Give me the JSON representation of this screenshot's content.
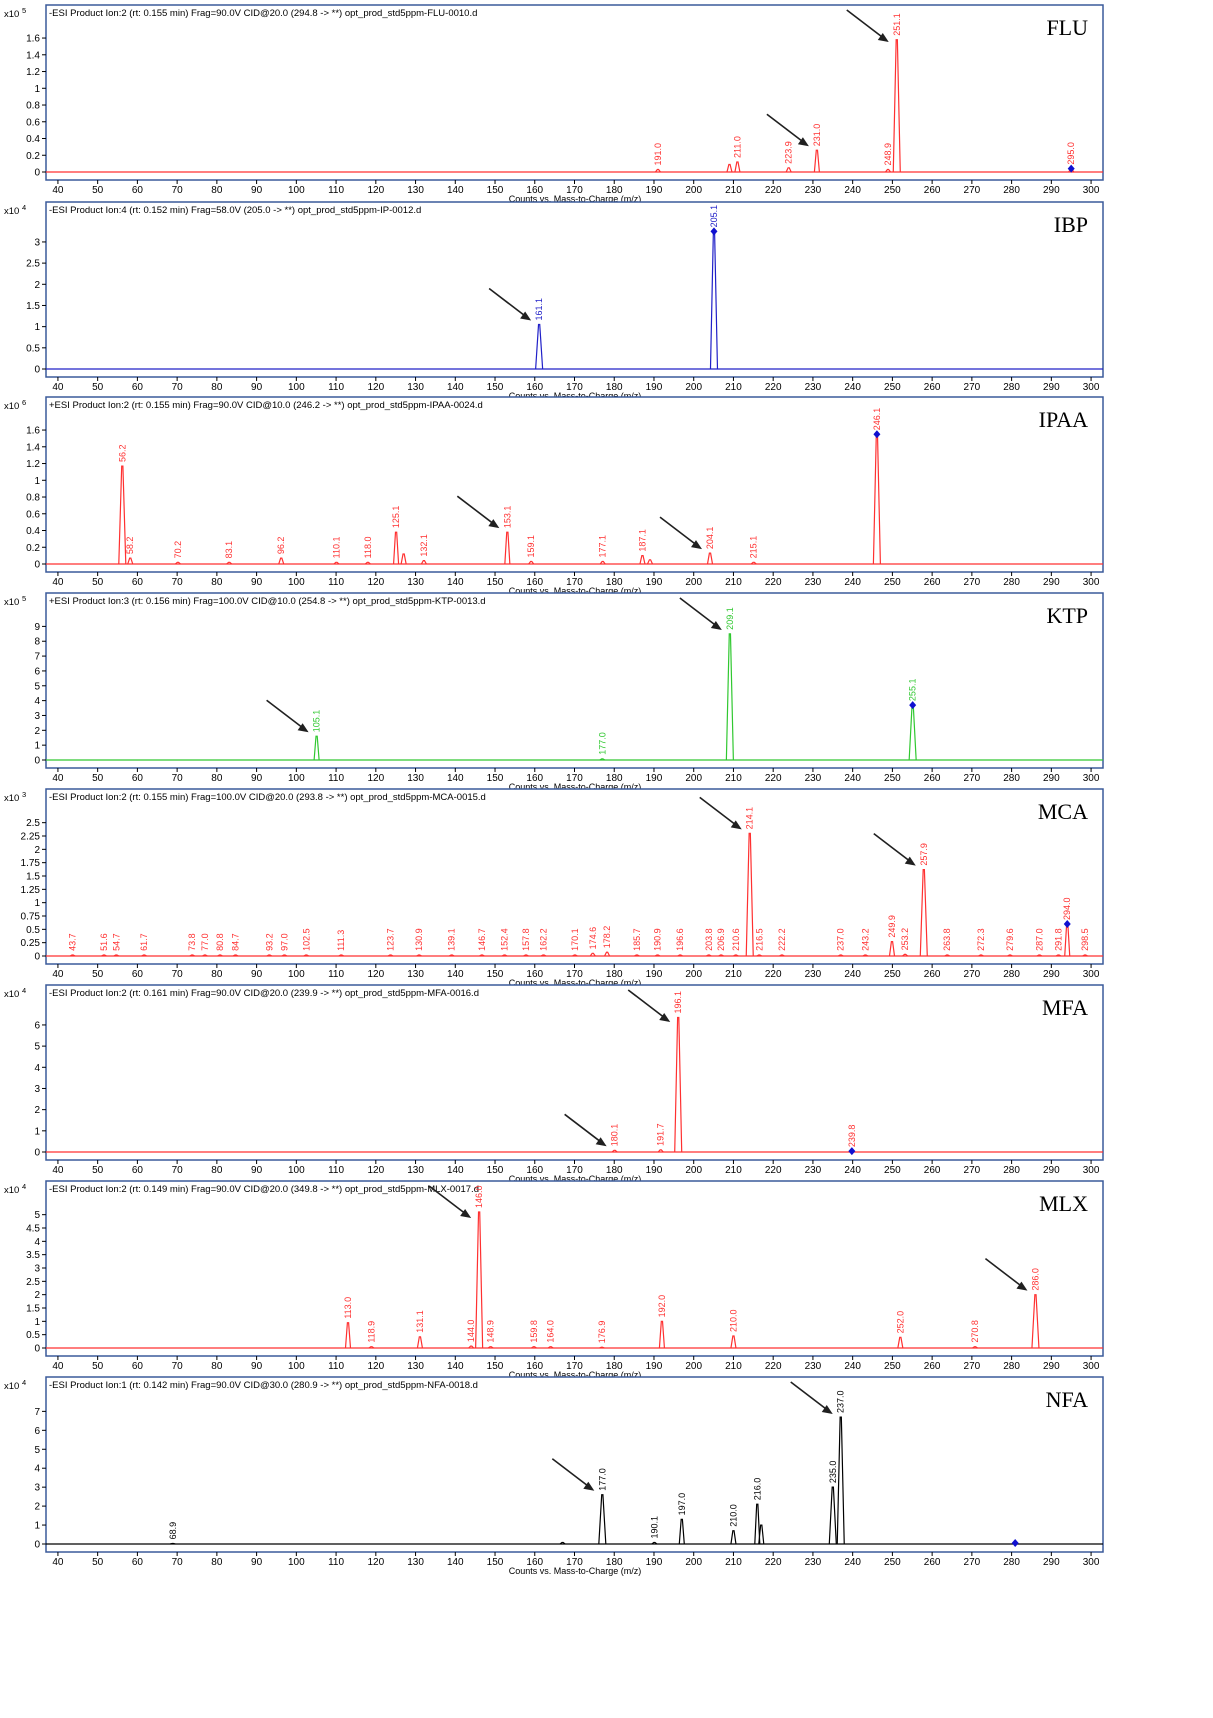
{
  "colors": {
    "red": "#ff3030",
    "blue": "#2020c8",
    "green": "#30c830",
    "black": "#000000",
    "arrow": "#202020",
    "frame": "#3a5a9a"
  },
  "x_axis": {
    "label": "Counts vs. Mass-to-Charge (m/z)",
    "ticks": [
      40,
      50,
      60,
      70,
      80,
      90,
      100,
      110,
      120,
      130,
      140,
      150,
      160,
      170,
      180,
      190,
      200,
      210,
      220,
      230,
      240,
      250,
      260,
      270,
      280,
      290,
      300
    ],
    "xlim": [
      37,
      303
    ]
  },
  "chart_data": [
    {
      "type": "line",
      "name": "FLU",
      "color": "#ff3030",
      "header": "-ESI Product Ion:2 (rt: 0.155 min) Frag=90.0V CID@20.0 (294.8 -> **) opt_prod_std5ppm-FLU-0010.d",
      "scale": "x10 5",
      "yticks": [
        "0",
        "0.2",
        "0.4",
        "0.6",
        "0.8",
        "1",
        "1.2",
        "1.4",
        "1.6"
      ],
      "ylim": [
        0,
        1.72
      ],
      "peaks": [
        {
          "x": 191.0,
          "y": 0.03,
          "label": "191.0"
        },
        {
          "x": 209.0,
          "y": 0.09,
          "label": ""
        },
        {
          "x": 211.0,
          "y": 0.12,
          "label": "211.0"
        },
        {
          "x": 223.9,
          "y": 0.05,
          "label": "223.9"
        },
        {
          "x": 231.0,
          "y": 0.26,
          "label": "231.0"
        },
        {
          "x": 248.9,
          "y": 0.03,
          "label": "248.9"
        },
        {
          "x": 251.1,
          "y": 1.58,
          "label": "251.1"
        },
        {
          "x": 295.0,
          "y": 0.04,
          "label": "295.0",
          "diamond": true
        }
      ],
      "arrows": [
        {
          "x": 251.1,
          "y": 1.58
        },
        {
          "x": 231.0,
          "y": 0.26
        }
      ]
    },
    {
      "type": "line",
      "name": "IBP",
      "color": "#2020c8",
      "header": "-ESI Product Ion:4 (rt: 0.152 min) Frag=58.0V (205.0 -> **) opt_prod_std5ppm-IP-0012.d",
      "scale": "x10 4",
      "yticks": [
        "0",
        "0.5",
        "1",
        "1.5",
        "2",
        "2.5",
        "3"
      ],
      "ylim": [
        0,
        3.4
      ],
      "peaks": [
        {
          "x": 161.1,
          "y": 1.05,
          "label": "161.1"
        },
        {
          "x": 205.1,
          "y": 3.25,
          "label": "205.1",
          "diamond": true
        }
      ],
      "arrows": [
        {
          "x": 161.1,
          "y": 1.05
        }
      ]
    },
    {
      "type": "line",
      "name": "IPAA",
      "color": "#ff3030",
      "header": "+ESI Product Ion:2 (rt: 0.155 min) Frag=90.0V CID@10.0 (246.2 -> **) opt_prod_std5ppm-IPAA-0024.d",
      "scale": "x10 6",
      "yticks": [
        "0",
        "0.2",
        "0.4",
        "0.6",
        "0.8",
        "1",
        "1.2",
        "1.4",
        "1.6"
      ],
      "ylim": [
        0,
        1.72
      ],
      "peaks": [
        {
          "x": 56.2,
          "y": 1.17,
          "label": "56.2"
        },
        {
          "x": 58.2,
          "y": 0.07,
          "label": "58.2"
        },
        {
          "x": 70.2,
          "y": 0.02,
          "label": "70.2"
        },
        {
          "x": 83.1,
          "y": 0.02,
          "label": "83.1"
        },
        {
          "x": 96.2,
          "y": 0.07,
          "label": "96.2"
        },
        {
          "x": 110.1,
          "y": 0.02,
          "label": "110.1"
        },
        {
          "x": 118.0,
          "y": 0.02,
          "label": "118.0"
        },
        {
          "x": 125.1,
          "y": 0.38,
          "label": "125.1"
        },
        {
          "x": 127.0,
          "y": 0.12,
          "label": ""
        },
        {
          "x": 132.1,
          "y": 0.04,
          "label": "132.1"
        },
        {
          "x": 153.1,
          "y": 0.38,
          "label": "153.1"
        },
        {
          "x": 159.1,
          "y": 0.03,
          "label": "159.1"
        },
        {
          "x": 177.1,
          "y": 0.03,
          "label": "177.1"
        },
        {
          "x": 187.1,
          "y": 0.1,
          "label": "187.1"
        },
        {
          "x": 189.0,
          "y": 0.05,
          "label": ""
        },
        {
          "x": 204.1,
          "y": 0.13,
          "label": "204.1"
        },
        {
          "x": 215.1,
          "y": 0.02,
          "label": "215.1"
        },
        {
          "x": 246.1,
          "y": 1.55,
          "label": "246.1",
          "diamond": true
        }
      ],
      "arrows": [
        {
          "x": 153.1,
          "y": 0.38
        },
        {
          "x": 204.1,
          "y": 0.13
        }
      ]
    },
    {
      "type": "line",
      "name": "KTP",
      "color": "#30c830",
      "header": "+ESI Product Ion:3 (rt: 0.156 min) Frag=100.0V CID@10.0 (254.8 -> **) opt_prod_std5ppm-KTP-0013.d",
      "scale": "x10 5",
      "yticks": [
        "0",
        "1",
        "2",
        "3",
        "4",
        "5",
        "6",
        "7",
        "8",
        "9"
      ],
      "ylim": [
        0,
        9.7
      ],
      "peaks": [
        {
          "x": 105.1,
          "y": 1.6,
          "label": "105.1"
        },
        {
          "x": 177.0,
          "y": 0.08,
          "label": "177.0"
        },
        {
          "x": 209.1,
          "y": 8.5,
          "label": "209.1"
        },
        {
          "x": 255.1,
          "y": 3.7,
          "label": "255.1",
          "diamond": true
        }
      ],
      "arrows": [
        {
          "x": 209.1,
          "y": 8.5
        },
        {
          "x": 105.1,
          "y": 1.6
        }
      ]
    },
    {
      "type": "line",
      "name": "MCA",
      "color": "#ff3030",
      "header": "-ESI Product Ion:2 (rt: 0.155 min) Frag=100.0V CID@20.0 (293.8 -> **) opt_prod_std5ppm-MCA-0015.d",
      "scale": "x10 3",
      "yticks": [
        "0",
        "0.25",
        "0.5",
        "0.75",
        "1",
        "1.25",
        "1.5",
        "1.75",
        "2",
        "2.25",
        "2.5"
      ],
      "ylim": [
        0,
        2.7
      ],
      "peaks": [
        {
          "x": 43.7,
          "y": 0.02,
          "label": "43.7"
        },
        {
          "x": 51.6,
          "y": 0.02,
          "label": "51.6"
        },
        {
          "x": 54.7,
          "y": 0.02,
          "label": "54.7"
        },
        {
          "x": 61.7,
          "y": 0.02,
          "label": "61.7"
        },
        {
          "x": 73.8,
          "y": 0.02,
          "label": "73.8"
        },
        {
          "x": 77.0,
          "y": 0.02,
          "label": "77.0"
        },
        {
          "x": 80.8,
          "y": 0.02,
          "label": "80.8"
        },
        {
          "x": 84.7,
          "y": 0.02,
          "label": "84.7"
        },
        {
          "x": 93.2,
          "y": 0.02,
          "label": "93.2"
        },
        {
          "x": 97.0,
          "y": 0.02,
          "label": "97.0"
        },
        {
          "x": 102.5,
          "y": 0.02,
          "label": "102.5"
        },
        {
          "x": 111.3,
          "y": 0.02,
          "label": "111.3"
        },
        {
          "x": 123.7,
          "y": 0.02,
          "label": "123.7"
        },
        {
          "x": 130.9,
          "y": 0.02,
          "label": "130.9"
        },
        {
          "x": 139.1,
          "y": 0.02,
          "label": "139.1"
        },
        {
          "x": 146.7,
          "y": 0.02,
          "label": "146.7"
        },
        {
          "x": 152.4,
          "y": 0.02,
          "label": "152.4"
        },
        {
          "x": 157.8,
          "y": 0.02,
          "label": "157.8"
        },
        {
          "x": 162.2,
          "y": 0.02,
          "label": "162.2"
        },
        {
          "x": 170.1,
          "y": 0.02,
          "label": "170.1"
        },
        {
          "x": 174.6,
          "y": 0.05,
          "label": "174.6"
        },
        {
          "x": 178.2,
          "y": 0.07,
          "label": "178.2"
        },
        {
          "x": 185.7,
          "y": 0.02,
          "label": "185.7"
        },
        {
          "x": 190.9,
          "y": 0.02,
          "label": "190.9"
        },
        {
          "x": 196.6,
          "y": 0.02,
          "label": "196.6"
        },
        {
          "x": 203.8,
          "y": 0.02,
          "label": "203.8"
        },
        {
          "x": 206.9,
          "y": 0.02,
          "label": "206.9"
        },
        {
          "x": 210.6,
          "y": 0.02,
          "label": "210.6"
        },
        {
          "x": 214.1,
          "y": 2.3,
          "label": "214.1"
        },
        {
          "x": 216.5,
          "y": 0.02,
          "label": "216.5"
        },
        {
          "x": 222.2,
          "y": 0.02,
          "label": "222.2"
        },
        {
          "x": 237.0,
          "y": 0.02,
          "label": "237.0"
        },
        {
          "x": 243.2,
          "y": 0.02,
          "label": "243.2"
        },
        {
          "x": 249.9,
          "y": 0.27,
          "label": "249.9"
        },
        {
          "x": 253.2,
          "y": 0.03,
          "label": "253.2"
        },
        {
          "x": 257.9,
          "y": 1.62,
          "label": "257.9"
        },
        {
          "x": 263.8,
          "y": 0.02,
          "label": "263.8"
        },
        {
          "x": 272.3,
          "y": 0.02,
          "label": "272.3"
        },
        {
          "x": 279.6,
          "y": 0.02,
          "label": "279.6"
        },
        {
          "x": 287.0,
          "y": 0.02,
          "label": "287.0"
        },
        {
          "x": 291.8,
          "y": 0.02,
          "label": "291.8"
        },
        {
          "x": 294.0,
          "y": 0.6,
          "label": "294.0",
          "diamond": true
        },
        {
          "x": 298.5,
          "y": 0.02,
          "label": "298.5"
        }
      ],
      "arrows": [
        {
          "x": 214.1,
          "y": 2.3
        },
        {
          "x": 257.9,
          "y": 1.62
        }
      ]
    },
    {
      "type": "line",
      "name": "MFA",
      "color": "#ff3030",
      "header": "-ESI Product Ion:2 (rt: 0.161 min) Frag=90.0V CID@20.0 (239.9 -> **) opt_prod_std5ppm-MFA-0016.d",
      "scale": "x10 4",
      "yticks": [
        "0",
        "1",
        "2",
        "3",
        "4",
        "5",
        "6"
      ],
      "ylim": [
        0,
        6.8
      ],
      "peaks": [
        {
          "x": 180.1,
          "y": 0.08,
          "label": "180.1"
        },
        {
          "x": 191.7,
          "y": 0.1,
          "label": "191.7"
        },
        {
          "x": 196.1,
          "y": 6.35,
          "label": "196.1"
        },
        {
          "x": 239.8,
          "y": 0.04,
          "label": "239.8",
          "diamond": true
        }
      ],
      "arrows": [
        {
          "x": 196.1,
          "y": 6.35
        },
        {
          "x": 180.1,
          "y": 0.08
        }
      ]
    },
    {
      "type": "line",
      "name": "MLX",
      "color": "#ff3030",
      "header": "-ESI Product Ion:2 (rt: 0.149 min) Frag=90.0V CID@20.0 (349.8 -> **) opt_prod_std5ppm-MLX-0017.d",
      "scale": "x10 4",
      "yticks": [
        "0",
        "0.5",
        "1",
        "1.5",
        "2",
        "2.5",
        "3",
        "3.5",
        "4",
        "4.5",
        "5"
      ],
      "ylim": [
        0,
        5.4
      ],
      "peaks": [
        {
          "x": 113.0,
          "y": 0.95,
          "label": "113.0"
        },
        {
          "x": 118.9,
          "y": 0.05,
          "label": "118.9"
        },
        {
          "x": 131.1,
          "y": 0.42,
          "label": "131.1"
        },
        {
          "x": 144.0,
          "y": 0.07,
          "label": "144.0"
        },
        {
          "x": 146.0,
          "y": 5.1,
          "label": "146.0"
        },
        {
          "x": 148.9,
          "y": 0.05,
          "label": "148.9"
        },
        {
          "x": 159.8,
          "y": 0.05,
          "label": "159.8"
        },
        {
          "x": 164.0,
          "y": 0.05,
          "label": "164.0"
        },
        {
          "x": 176.9,
          "y": 0.03,
          "label": "176.9"
        },
        {
          "x": 192.0,
          "y": 1.0,
          "label": "192.0"
        },
        {
          "x": 210.0,
          "y": 0.45,
          "label": "210.0"
        },
        {
          "x": 252.0,
          "y": 0.4,
          "label": "252.0"
        },
        {
          "x": 270.8,
          "y": 0.05,
          "label": "270.8"
        },
        {
          "x": 286.0,
          "y": 2.0,
          "label": "286.0"
        }
      ],
      "arrows": [
        {
          "x": 146.0,
          "y": 5.1
        },
        {
          "x": 286.0,
          "y": 2.0
        }
      ]
    },
    {
      "type": "line",
      "name": "NFA",
      "color": "#000000",
      "header": "-ESI Product Ion:1 (rt: 0.142 min) Frag=90.0V CID@30.0 (280.9 -> **) opt_prod_std5ppm-NFA-0018.d",
      "scale": "x10 4",
      "yticks": [
        "0",
        "1",
        "2",
        "3",
        "4",
        "5",
        "6",
        "7"
      ],
      "ylim": [
        0,
        7.6
      ],
      "peaks": [
        {
          "x": 68.9,
          "y": 0.03,
          "label": "68.9"
        },
        {
          "x": 167.0,
          "y": 0.08,
          "label": ""
        },
        {
          "x": 177.0,
          "y": 2.6,
          "label": "177.0"
        },
        {
          "x": 190.1,
          "y": 0.08,
          "label": "190.1"
        },
        {
          "x": 197.0,
          "y": 1.3,
          "label": "197.0"
        },
        {
          "x": 210.0,
          "y": 0.7,
          "label": "210.0"
        },
        {
          "x": 216.0,
          "y": 2.1,
          "label": "216.0"
        },
        {
          "x": 217.0,
          "y": 1.0,
          "label": ""
        },
        {
          "x": 235.0,
          "y": 3.0,
          "label": "235.0"
        },
        {
          "x": 237.0,
          "y": 6.7,
          "label": "237.0"
        },
        {
          "x": 280.9,
          "y": 0.05,
          "label": "",
          "diamond": true
        }
      ],
      "arrows": [
        {
          "x": 237.0,
          "y": 6.7
        },
        {
          "x": 177.0,
          "y": 2.6
        }
      ]
    }
  ]
}
